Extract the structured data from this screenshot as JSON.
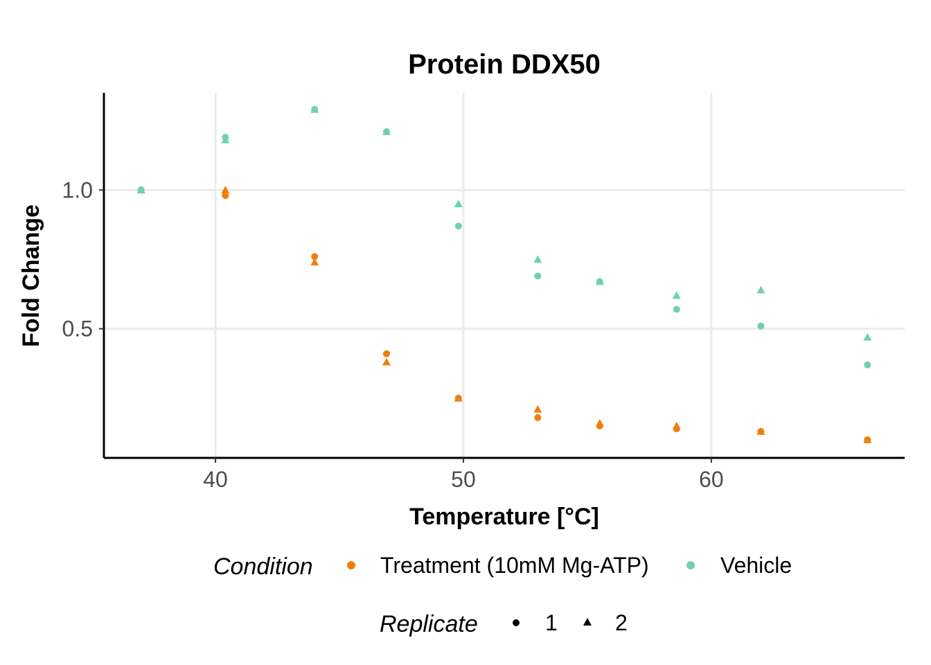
{
  "chart_data": {
    "type": "scatter",
    "title": "Protein DDX50",
    "xlabel": "Temperature [°C]",
    "ylabel": "Fold Change",
    "xlim": [
      35.5,
      67.8
    ],
    "ylim": [
      0.035,
      1.35
    ],
    "x_ticks": [
      40,
      50,
      60
    ],
    "x_tick_labels": [
      "40",
      "50",
      "60"
    ],
    "y_ticks": [
      0.5,
      1.0
    ],
    "y_tick_labels": [
      "0.5",
      "1.0"
    ],
    "grid": true,
    "legend_position": "bottom",
    "color_legend": {
      "title": "Condition",
      "entries": [
        {
          "label": "Treatment (10mM Mg-ATP)",
          "color": "#f07f0e"
        },
        {
          "label": "Vehicle",
          "color": "#6fd1b0"
        }
      ]
    },
    "shape_legend": {
      "title": "Replicate",
      "entries": [
        {
          "label": "1",
          "shape": "circle"
        },
        {
          "label": "2",
          "shape": "triangle"
        }
      ]
    },
    "series": [
      {
        "condition": "Treatment (10mM Mg-ATP)",
        "replicate": "1",
        "color": "#f07f0e",
        "shape": "circle",
        "x": [
          37.0,
          40.4,
          44.0,
          46.9,
          49.8,
          53.0,
          55.5,
          58.6,
          62.0,
          66.3
        ],
        "y": [
          1.0,
          0.98,
          0.76,
          0.41,
          0.25,
          0.18,
          0.15,
          0.14,
          0.13,
          0.1
        ]
      },
      {
        "condition": "Treatment (10mM Mg-ATP)",
        "replicate": "2",
        "color": "#f07f0e",
        "shape": "triangle",
        "x": [
          37.0,
          40.4,
          44.0,
          46.9,
          49.8,
          53.0,
          55.5,
          58.6,
          62.0,
          66.3
        ],
        "y": [
          1.0,
          1.0,
          0.74,
          0.38,
          0.25,
          0.21,
          0.16,
          0.15,
          0.13,
          0.1
        ]
      },
      {
        "condition": "Vehicle",
        "replicate": "1",
        "color": "#6fd1b0",
        "shape": "circle",
        "x": [
          37.0,
          40.4,
          44.0,
          46.9,
          49.8,
          53.0,
          55.5,
          58.6,
          62.0,
          66.3
        ],
        "y": [
          1.0,
          1.19,
          1.29,
          1.21,
          0.87,
          0.69,
          0.67,
          0.57,
          0.51,
          0.37
        ]
      },
      {
        "condition": "Vehicle",
        "replicate": "2",
        "color": "#6fd1b0",
        "shape": "triangle",
        "x": [
          37.0,
          40.4,
          44.0,
          46.9,
          49.8,
          53.0,
          55.5,
          58.6,
          62.0,
          66.3
        ],
        "y": [
          1.0,
          1.18,
          1.29,
          1.21,
          0.95,
          0.75,
          0.67,
          0.62,
          0.64,
          0.47
        ]
      }
    ]
  }
}
